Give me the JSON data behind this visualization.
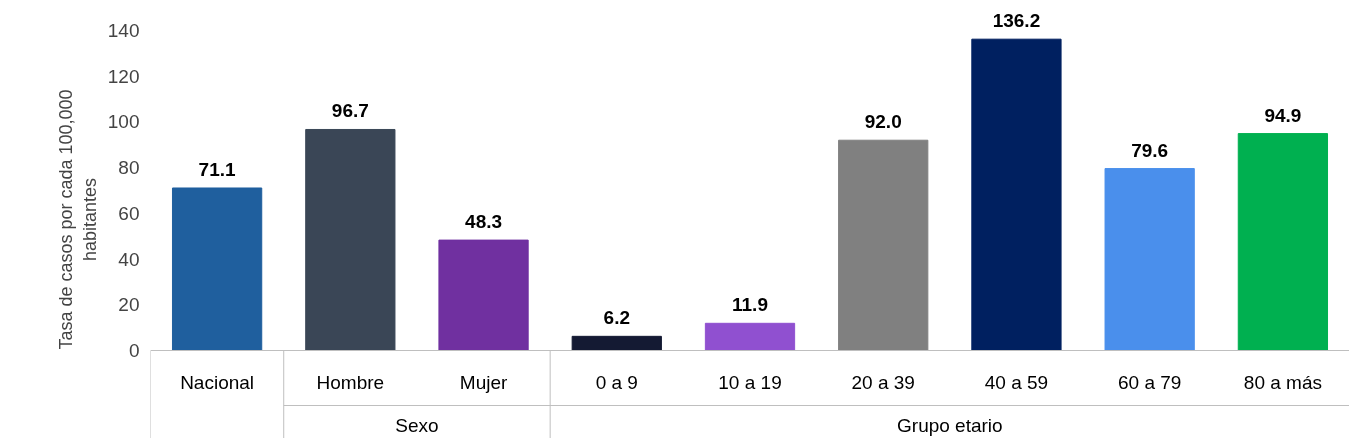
{
  "chart_data": {
    "type": "bar",
    "ylabel": "Tasa de casos por cada 100,000 habitantes",
    "categories": [
      "Nacional",
      "Hombre",
      "Mujer",
      "0 a 9",
      "10 a 19",
      "20 a 39",
      "40 a 59",
      "60 a 79",
      "80 a más"
    ],
    "values": [
      71.1,
      96.7,
      48.3,
      6.2,
      11.9,
      92.0,
      136.2,
      79.6,
      94.9
    ],
    "colors": [
      "#1f5f9e",
      "#3a4656",
      "#7030a0",
      "#141a33",
      "#9050d0",
      "#808080",
      "#002060",
      "#4a8fec",
      "#00b050"
    ],
    "value_labels": [
      "71.1",
      "96.7",
      "48.3",
      "6.2",
      "11.9",
      "92.0",
      "136.2",
      "79.6",
      "94.9"
    ],
    "annotations": [
      "Sexo",
      "Grupo etario"
    ],
    "ylim": [
      0,
      140
    ],
    "yticks": [
      0,
      20,
      40,
      60,
      80,
      100,
      120,
      140
    ],
    "grid": false
  }
}
